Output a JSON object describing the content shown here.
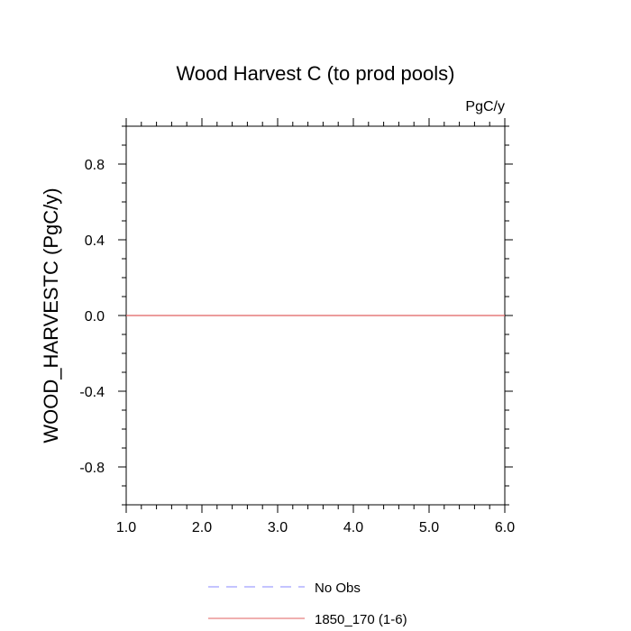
{
  "chart_data": {
    "type": "line",
    "title": "Wood Harvest C (to prod pools)",
    "units_label": "PgC/y",
    "xlabel": "",
    "ylabel": "WOOD_HARVESTC  (PgC/y)",
    "xlim": [
      1.0,
      6.0
    ],
    "ylim": [
      -1.0,
      1.0
    ],
    "x_ticks": [
      1.0,
      2.0,
      3.0,
      4.0,
      5.0,
      6.0
    ],
    "x_tick_labels": [
      "1.0",
      "2.0",
      "3.0",
      "4.0",
      "5.0",
      "6.0"
    ],
    "y_ticks": [
      0.8,
      0.4,
      0.0,
      -0.4,
      -0.8
    ],
    "y_tick_labels": [
      "0.8",
      "0.4",
      "0.0",
      "-0.4",
      "-0.8"
    ],
    "grid": false,
    "legend_position": "bottom",
    "series": [
      {
        "name": "No Obs",
        "color": "#8888ff",
        "dash": "dashed",
        "x": [],
        "y": []
      },
      {
        "name": "1850_170 (1-6)",
        "color": "#e06060",
        "dash": "solid",
        "x": [
          1.0,
          2.0,
          3.0,
          4.0,
          5.0,
          6.0
        ],
        "y": [
          0.0,
          0.0,
          0.0,
          0.0,
          0.0,
          0.0
        ]
      }
    ]
  }
}
